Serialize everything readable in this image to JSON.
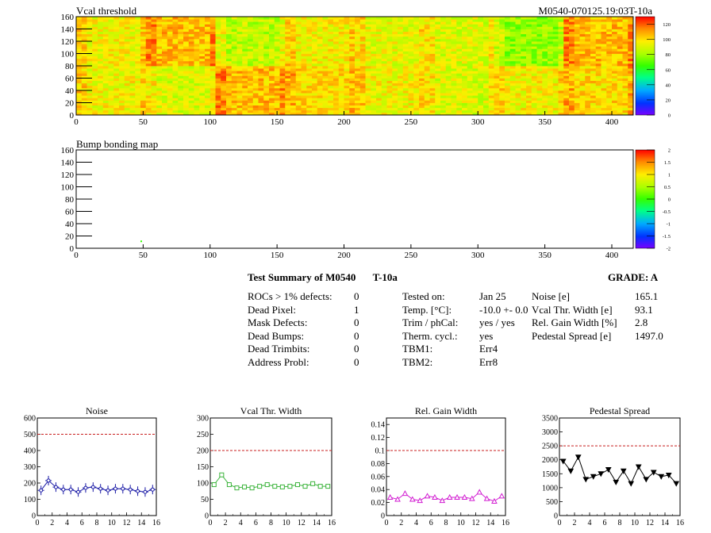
{
  "heatmap": {
    "title": "Vcal threshold",
    "id_label": "M0540-070125.19:03T-10a",
    "xlim": [
      0,
      416
    ],
    "ylim": [
      0,
      160
    ],
    "x_ticks": [
      "0",
      "50",
      "100",
      "150",
      "200",
      "250",
      "300",
      "350",
      "400"
    ],
    "y_ticks": [
      "0",
      "20",
      "40",
      "60",
      "80",
      "100",
      "120",
      "140",
      "160"
    ],
    "colorbar_ticks": [
      "0",
      "20",
      "40",
      "60",
      "80",
      "100",
      "120"
    ],
    "colorbar_range": [
      0,
      130
    ]
  },
  "bumpmap": {
    "title": "Bump bonding map",
    "xlim": [
      0,
      416
    ],
    "ylim": [
      0,
      160
    ],
    "x_ticks": [
      "0",
      "50",
      "100",
      "150",
      "200",
      "250",
      "300",
      "350",
      "400"
    ],
    "y_ticks": [
      "0",
      "20",
      "40",
      "60",
      "80",
      "100",
      "120",
      "140",
      "160"
    ],
    "colorbar_ticks": [
      "-2",
      "-1.5",
      "-1",
      "-0.5",
      "0",
      "0.5",
      "1",
      "1.5",
      "2"
    ],
    "colorbar_range": [
      -2,
      2
    ]
  },
  "summary": {
    "title": "Test Summary of M0540",
    "temp_label": "T-10a",
    "grade": "GRADE:  A",
    "col1": [
      {
        "label": "ROCs > 1% defects:",
        "value": "0"
      },
      {
        "label": "Dead Pixel:",
        "value": "1"
      },
      {
        "label": "Mask Defects:",
        "value": "0"
      },
      {
        "label": "Dead Bumps:",
        "value": "0"
      },
      {
        "label": "Dead Trimbits:",
        "value": "0"
      },
      {
        "label": "Address Probl:",
        "value": "0"
      }
    ],
    "col2": [
      {
        "label": "Tested on:",
        "value": "Jan 25"
      },
      {
        "label": "Temp. [°C]:",
        "value": "-10.0 +- 0.0"
      },
      {
        "label": "Trim / phCal:",
        "value": "yes / yes"
      },
      {
        "label": "Therm. cycl.:",
        "value": "yes"
      },
      {
        "label": "TBM1:",
        "value": "Err4"
      },
      {
        "label": "TBM2:",
        "value": "Err8"
      }
    ],
    "col3": [
      {
        "label": "Noise [e]",
        "value": "165.1"
      },
      {
        "label": "Vcal Thr. Width [e]",
        "value": "93.1"
      },
      {
        "label": "Rel. Gain Width [%]",
        "value": "2.8"
      },
      {
        "label": "Pedestal Spread [e]",
        "value": "1497.0"
      }
    ]
  },
  "chart_data": [
    {
      "type": "heatmap",
      "title": "Vcal threshold",
      "xlim": [
        0,
        416
      ],
      "ylim": [
        0,
        160
      ],
      "cells": {
        "description_blocks_x": [
          0,
          52,
          104,
          156,
          208,
          260,
          312,
          364,
          416
        ],
        "top_row_means": [
          95,
          105,
          85,
          95,
          92,
          90,
          78,
          105
        ],
        "bottom_row_means": [
          95,
          90,
          105,
          100,
          95,
          90,
          95,
          100
        ]
      }
    },
    {
      "type": "heatmap",
      "title": "Bump bonding map",
      "xlim": [
        0,
        416
      ],
      "ylim": [
        0,
        160
      ],
      "points": [
        {
          "x": 48,
          "y": 10,
          "value": 0
        }
      ]
    },
    {
      "type": "line",
      "title": "Noise",
      "x": [
        0,
        1,
        2,
        3,
        4,
        5,
        6,
        7,
        8,
        9,
        10,
        11,
        12,
        13,
        14,
        15
      ],
      "y": [
        155,
        215,
        175,
        160,
        160,
        145,
        170,
        175,
        165,
        155,
        165,
        165,
        160,
        150,
        145,
        160
      ],
      "threshold": 500,
      "xlim": [
        0,
        16
      ],
      "ylim": [
        0,
        600
      ],
      "x_ticks": [
        "0",
        "2",
        "4",
        "6",
        "8",
        "10",
        "12",
        "14",
        "16"
      ],
      "y_ticks": [
        "0",
        "100",
        "200",
        "300",
        "400",
        "500",
        "600"
      ],
      "color": "#1a1aa6",
      "marker": "cross"
    },
    {
      "type": "line",
      "title": "Vcal Thr. Width",
      "x": [
        0,
        1,
        2,
        3,
        4,
        5,
        6,
        7,
        8,
        9,
        10,
        11,
        12,
        13,
        14,
        15
      ],
      "y": [
        95,
        125,
        95,
        85,
        88,
        85,
        90,
        95,
        90,
        88,
        90,
        95,
        90,
        98,
        90,
        90
      ],
      "threshold": 200,
      "xlim": [
        0,
        16
      ],
      "ylim": [
        0,
        300
      ],
      "x_ticks": [
        "0",
        "2",
        "4",
        "6",
        "8",
        "10",
        "12",
        "14",
        "16"
      ],
      "y_ticks": [
        "0",
        "50",
        "100",
        "150",
        "200",
        "250",
        "300"
      ],
      "color": "#3cb43c",
      "marker": "square"
    },
    {
      "type": "line",
      "title": "Rel. Gain Width",
      "x": [
        0,
        1,
        2,
        3,
        4,
        5,
        6,
        7,
        8,
        9,
        10,
        11,
        12,
        13,
        14,
        15
      ],
      "y": [
        0.028,
        0.025,
        0.034,
        0.025,
        0.023,
        0.03,
        0.028,
        0.023,
        0.028,
        0.028,
        0.028,
        0.026,
        0.036,
        0.026,
        0.022,
        0.03
      ],
      "threshold": 0.1,
      "xlim": [
        0,
        16
      ],
      "ylim": [
        0,
        0.15
      ],
      "x_ticks": [
        "0",
        "2",
        "4",
        "6",
        "8",
        "10",
        "12",
        "14",
        "16"
      ],
      "y_ticks": [
        "0",
        "0.02",
        "0.04",
        "0.06",
        "0.08",
        "0.1",
        "0.12",
        "0.14"
      ],
      "color": "#d21ed2",
      "marker": "triangle"
    },
    {
      "type": "line",
      "title": "Pedestal Spread",
      "x": [
        0,
        1,
        2,
        3,
        4,
        5,
        6,
        7,
        8,
        9,
        10,
        11,
        12,
        13,
        14,
        15
      ],
      "y": [
        1950,
        1600,
        2100,
        1300,
        1400,
        1500,
        1650,
        1200,
        1600,
        1150,
        1750,
        1300,
        1550,
        1400,
        1450,
        1150
      ],
      "threshold": 2500,
      "xlim": [
        0,
        16
      ],
      "ylim": [
        0,
        3500
      ],
      "x_ticks": [
        "0",
        "2",
        "4",
        "6",
        "8",
        "10",
        "12",
        "14",
        "16"
      ],
      "y_ticks": [
        "0",
        "500",
        "1000",
        "1500",
        "2000",
        "2500",
        "3000",
        "3500"
      ],
      "color": "#000000",
      "marker": "triangle-down"
    }
  ]
}
